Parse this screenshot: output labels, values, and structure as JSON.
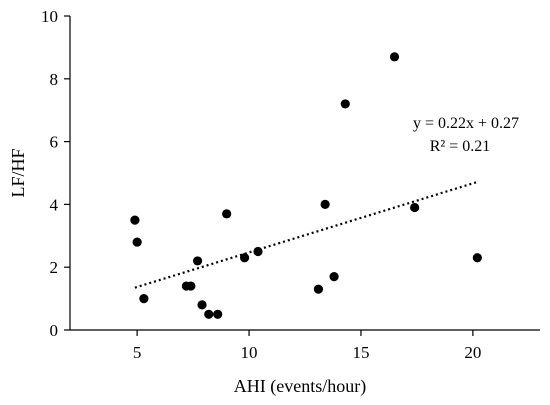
{
  "chart_data": {
    "type": "scatter",
    "title": "",
    "xlabel": "AHI (events/hour)",
    "ylabel": "LF/HF",
    "xlim": [
      2,
      23
    ],
    "ylim": [
      0,
      10
    ],
    "xticks": [
      5,
      10,
      15,
      20
    ],
    "yticks": [
      0,
      2,
      4,
      6,
      8,
      10
    ],
    "grid": false,
    "legend": "none",
    "marker_color": "#000000",
    "points": [
      {
        "x": 4.9,
        "y": 3.5
      },
      {
        "x": 5.0,
        "y": 2.8
      },
      {
        "x": 5.3,
        "y": 1.0
      },
      {
        "x": 7.2,
        "y": 1.4
      },
      {
        "x": 7.4,
        "y": 1.4
      },
      {
        "x": 7.7,
        "y": 2.2
      },
      {
        "x": 7.9,
        "y": 0.8
      },
      {
        "x": 8.2,
        "y": 0.5
      },
      {
        "x": 8.6,
        "y": 0.5
      },
      {
        "x": 9.0,
        "y": 3.7
      },
      {
        "x": 9.8,
        "y": 2.3
      },
      {
        "x": 10.4,
        "y": 2.5
      },
      {
        "x": 13.1,
        "y": 1.3
      },
      {
        "x": 13.4,
        "y": 4.0
      },
      {
        "x": 13.8,
        "y": 1.7
      },
      {
        "x": 14.3,
        "y": 7.2
      },
      {
        "x": 16.5,
        "y": 8.7
      },
      {
        "x": 17.4,
        "y": 3.9
      },
      {
        "x": 20.2,
        "y": 2.3
      }
    ],
    "trendline": {
      "style": "dotted",
      "slope": 0.22,
      "intercept": 0.27,
      "x_start": 4.9,
      "x_end": 20.2
    },
    "annotations": {
      "equation": "y = 0.22x + 0.27",
      "r_squared": "R² = 0.21"
    }
  }
}
